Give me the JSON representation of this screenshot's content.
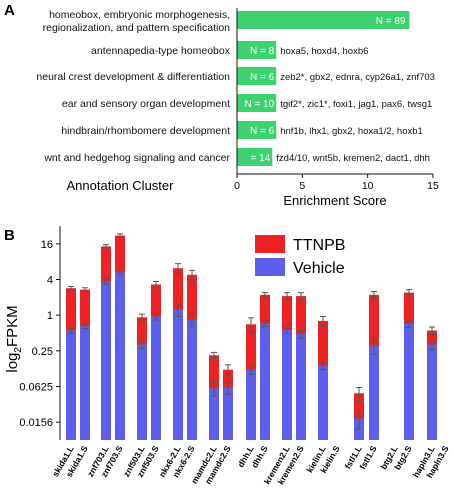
{
  "panel_a_label": "A",
  "panel_b_label": "B",
  "chart_data": [
    {
      "type": "bar",
      "orientation": "horizontal",
      "panel": "A",
      "ylabel": "Annotation Cluster",
      "xlabel": "Enrichment Score",
      "xlim": [
        0,
        15
      ],
      "xticks": [
        "0",
        "5",
        "10",
        "15"
      ],
      "bar_color": "#3dd16f",
      "categories": [
        [
          "homeobox, embryonic morphogenesis,",
          "regionalization, and pattern specification"
        ],
        [
          "antennapedia-type homeobox"
        ],
        [
          "neural crest development & differentiation"
        ],
        [
          "ear and sensory organ development"
        ],
        [
          "hindbrain/rhombomere development"
        ],
        [
          "wnt and hedgehog signaling and cancer"
        ]
      ],
      "values": [
        13.2,
        3.0,
        3.0,
        3.0,
        3.0,
        2.7
      ],
      "n_labels": [
        "N = 89",
        "N = 8",
        "N = 6",
        "N = 10",
        "N = 6",
        "= 14"
      ],
      "gene_labels": [
        "",
        "hoxa5, hoxd4, hoxb6",
        "zeb2*, gbx2, ednra, cyp26a1, znf703",
        "tgif2*, zic1*, foxi1, jag1, pax6, twsg1",
        "hnf1b, lhx1, gbx2, hoxa1/2, hoxb1",
        "fzd4/10, wnt5b, kremen2, dact1, dhh"
      ]
    },
    {
      "type": "bar",
      "stacked": true,
      "panel": "B",
      "ylabel_main": "log",
      "ylabel_sub": "2",
      "ylabel_rest": "FPKM",
      "yscale": "log2",
      "ylim": [
        0.0078,
        32
      ],
      "yticks": [
        16,
        4,
        1,
        0.25,
        0.0625,
        0.0156
      ],
      "ytick_labels": [
        "16",
        "4",
        "1",
        "0.25",
        "0.0625",
        "0.0156"
      ],
      "legend": {
        "position": "top-right",
        "entries": [
          {
            "name": "TTNPB",
            "color": "#ee2222"
          },
          {
            "name": "Vehicle",
            "color": "#5e5eee"
          }
        ]
      },
      "categories": [
        "skida1.L",
        "skida1.S",
        "znf703.L",
        "znf703.S",
        "znf503.L",
        "znf503.S",
        "nkx6-2.L",
        "nkx6-2.S",
        "mamdc2.L",
        "mamdc2.S",
        "dhh.L",
        "dhh.S",
        "kremen2.L",
        "kremen2.S",
        "kielin.L",
        "kielin.S",
        "fstl1.L",
        "fstl1.S",
        "btg2.L",
        "btg2.S",
        "hapln3.L",
        "hapln3.S"
      ],
      "series": [
        {
          "name": "Vehicle",
          "color": "#5e5eee",
          "values": [
            0.55,
            0.65,
            3.7,
            5.3,
            0.32,
            0.95,
            1.25,
            0.85,
            0.058,
            0.06,
            0.12,
            0.72,
            0.56,
            0.48,
            0.14,
            null,
            0.018,
            0.3,
            null,
            0.72,
            0.32,
            null
          ],
          "err": [
            0.05,
            0.06,
            0.4,
            0.5,
            0.05,
            0.12,
            0.3,
            0.2,
            0.015,
            0.014,
            0.02,
            0.08,
            0.07,
            0.07,
            0.02,
            null,
            0.006,
            0.08,
            null,
            0.1,
            0.06,
            null
          ]
        },
        {
          "name": "TTNPB",
          "color": "#ee2222",
          "values": [
            2.85,
            2.7,
            14.5,
            22.0,
            0.92,
            3.3,
            6.2,
            4.8,
            0.21,
            0.12,
            0.7,
            2.2,
            2.1,
            2.1,
            0.8,
            null,
            0.048,
            2.2,
            null,
            2.4,
            0.55,
            null
          ],
          "err": [
            0.2,
            0.2,
            1.0,
            1.5,
            0.12,
            0.4,
            1.2,
            0.9,
            0.025,
            0.025,
            0.2,
            0.2,
            0.3,
            0.3,
            0.15,
            null,
            0.012,
            0.3,
            null,
            0.3,
            0.08,
            null
          ]
        }
      ]
    }
  ]
}
